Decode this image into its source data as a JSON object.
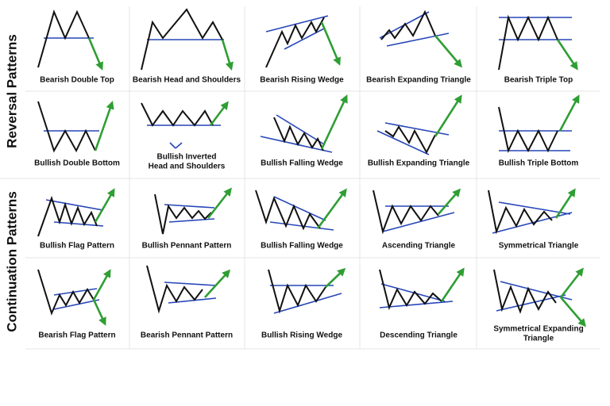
{
  "sections": [
    {
      "label": "Reversal Patterns",
      "patterns": [
        {
          "lines": [
            "Bearish Double Top"
          ]
        },
        {
          "lines": [
            "Bearish Head and Shoulders"
          ]
        },
        {
          "lines": [
            "Bearish Rising Wedge"
          ]
        },
        {
          "lines": [
            "Bearish Expanding Triangle"
          ]
        },
        {
          "lines": [
            "Bearish Triple Top"
          ]
        },
        {
          "lines": [
            "Bullish Double Bottom"
          ]
        },
        {
          "lines": [
            "Bullish Inverted",
            "Head and Shoulders"
          ]
        },
        {
          "lines": [
            "Bullish Falling Wedge"
          ]
        },
        {
          "lines": [
            "Bullish Expanding Triangle"
          ]
        },
        {
          "lines": [
            "Bullish Triple Bottom"
          ]
        }
      ]
    },
    {
      "label": "Continuation Patterns",
      "patterns": [
        {
          "lines": [
            "Bullish Flag Pattern"
          ]
        },
        {
          "lines": [
            "Bullish Pennant Pattern"
          ]
        },
        {
          "lines": [
            "Bullish Falling Wedge"
          ]
        },
        {
          "lines": [
            "Ascending Triangle"
          ]
        },
        {
          "lines": [
            "Symmetrical Triangle"
          ]
        },
        {
          "lines": [
            "Bearish Flag Pattern"
          ]
        },
        {
          "lines": [
            "Bearish Pennant Pattern"
          ]
        },
        {
          "lines": [
            "Bullish Rising Wedge"
          ]
        },
        {
          "lines": [
            "Descending Triangle"
          ]
        },
        {
          "lines": [
            "Symmetrical Expanding",
            "Triangle"
          ]
        }
      ]
    }
  ]
}
